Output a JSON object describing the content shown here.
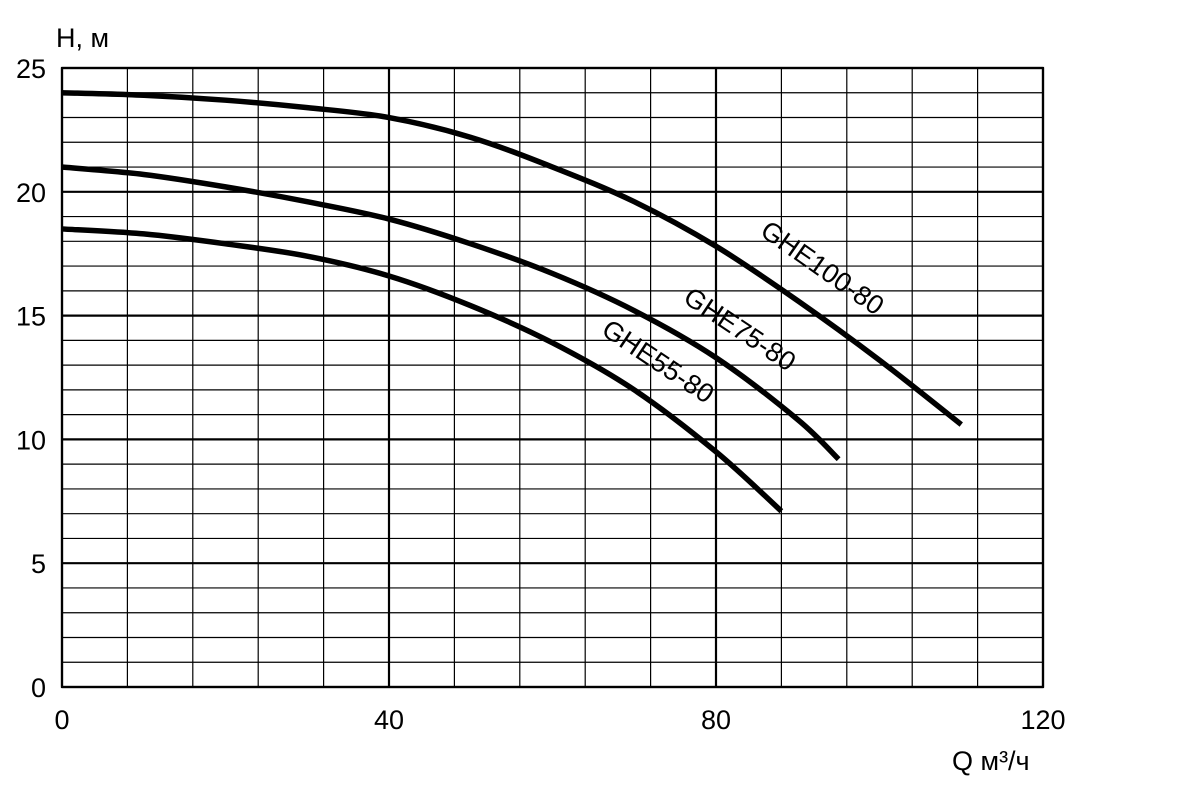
{
  "chart_data": {
    "type": "line",
    "title": "",
    "xlabel": "Q м³/ч",
    "ylabel": "H, м",
    "xlim": [
      0,
      120
    ],
    "ylim": [
      0,
      25
    ],
    "x_ticks": [
      0,
      40,
      80,
      120
    ],
    "y_ticks": [
      0,
      5,
      10,
      15,
      20,
      25
    ],
    "grid": {
      "on": true,
      "x_minor_step": 8,
      "x_major_step": 40,
      "y_minor_step": 1,
      "y_major_step": 5
    },
    "series": [
      {
        "name": "GHE100-80",
        "x": [
          0,
          10,
          20,
          30,
          40,
          50,
          60,
          70,
          80,
          90,
          100,
          110
        ],
        "y": [
          24.0,
          23.9,
          23.7,
          23.4,
          23.0,
          22.2,
          21.0,
          19.6,
          17.8,
          15.6,
          13.2,
          10.6
        ]
      },
      {
        "name": "GHE75-80",
        "x": [
          0,
          10,
          20,
          30,
          40,
          50,
          60,
          70,
          80,
          90,
          95
        ],
        "y": [
          21.0,
          20.7,
          20.2,
          19.6,
          18.9,
          17.9,
          16.7,
          15.2,
          13.3,
          10.8,
          9.2
        ]
      },
      {
        "name": "GHE55-80",
        "x": [
          0,
          10,
          20,
          30,
          40,
          50,
          60,
          70,
          80,
          88
        ],
        "y": [
          18.5,
          18.3,
          17.9,
          17.4,
          16.6,
          15.4,
          13.9,
          12.0,
          9.5,
          7.1
        ]
      }
    ]
  }
}
